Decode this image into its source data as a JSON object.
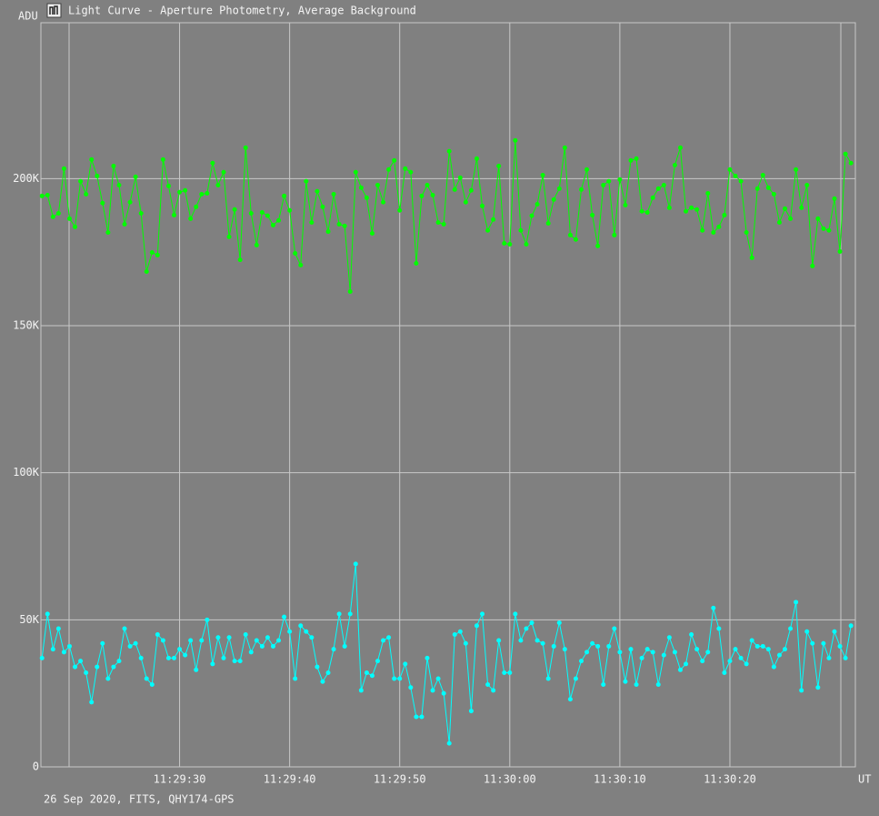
{
  "window_title": "Light Curve - Aperture Photometry, Average Background",
  "chart_data": {
    "type": "line",
    "ylabel": "ADU",
    "xlabel": "UT",
    "footer": "26 Sep 2020, FITS, QHY174-GPS",
    "x": [
      41357.5,
      41358,
      41358.5,
      41359,
      41359.5,
      41360,
      41360.5,
      41361,
      41361.5,
      41362,
      41362.5,
      41363,
      41363.5,
      41364,
      41364.5,
      41365,
      41365.5,
      41366,
      41366.5,
      41367,
      41367.5,
      41368,
      41368.5,
      41369,
      41369.5,
      41370,
      41370.5,
      41371,
      41371.5,
      41372,
      41372.5,
      41373,
      41373.5,
      41374,
      41374.5,
      41375,
      41375.5,
      41376,
      41376.5,
      41377,
      41377.5,
      41378,
      41378.5,
      41379,
      41379.5,
      41380,
      41380.5,
      41381,
      41381.5,
      41382,
      41382.5,
      41383,
      41383.5,
      41384,
      41384.5,
      41385,
      41385.5,
      41386,
      41386.5,
      41387,
      41387.5,
      41388,
      41388.5,
      41389,
      41389.5,
      41390,
      41390.5,
      41391,
      41391.5,
      41392,
      41392.5,
      41393,
      41393.5,
      41394,
      41394.5,
      41395,
      41395.5,
      41396,
      41396.5,
      41397,
      41397.5,
      41398,
      41398.5,
      41399,
      41399.5,
      41400,
      41400.5,
      41401,
      41401.5,
      41402,
      41402.5,
      41403,
      41403.5,
      41404,
      41404.5,
      41405,
      41405.5,
      41406,
      41406.5,
      41407,
      41407.5,
      41408,
      41408.5,
      41409,
      41409.5,
      41410,
      41410.5,
      41411,
      41411.5,
      41412,
      41412.5,
      41413,
      41413.5,
      41414,
      41414.5,
      41415,
      41415.5,
      41416,
      41416.5,
      41417,
      41417.5,
      41418,
      41418.5,
      41419,
      41419.5,
      41420,
      41420.5,
      41421,
      41421.5,
      41422,
      41422.5,
      41423,
      41423.5,
      41424,
      41424.5,
      41425,
      41425.5,
      41426,
      41426.5,
      41427,
      41427.5,
      41428,
      41428.5,
      41429,
      41429.5,
      41430,
      41430.5,
      41431
    ],
    "series": [
      {
        "color": "#00ff00",
        "values": [
          194100,
          194400,
          187000,
          188200,
          203400,
          186400,
          183600,
          199100,
          194700,
          206500,
          200900,
          191700,
          181700,
          204300,
          197800,
          184500,
          192000,
          200600,
          188200,
          168400,
          174900,
          174000,
          206500,
          197500,
          187600,
          195400,
          196000,
          186400,
          190400,
          194700,
          195000,
          205300,
          197800,
          202200,
          180200,
          189500,
          172400,
          210500,
          188200,
          177400,
          188500,
          187400,
          184200,
          185800,
          194100,
          189200,
          174600,
          170600,
          199100,
          185100,
          195700,
          190400,
          182000,
          194700,
          184500,
          183900,
          161600,
          202200,
          196900,
          193500,
          181400,
          197800,
          192000,
          203100,
          206200,
          189200,
          203400,
          202200,
          171200,
          194100,
          197800,
          194400,
          185100,
          184500,
          209300,
          196300,
          200300,
          192000,
          196000,
          206800,
          190700,
          182400,
          186100,
          204300,
          178000,
          177700,
          213000,
          182400,
          177700,
          187400,
          191300,
          201200,
          184800,
          192900,
          196600,
          210500,
          180800,
          179300,
          196300,
          203100,
          187600,
          177100,
          197800,
          199100,
          180800,
          199700,
          191000,
          206200,
          206800,
          188900,
          188500,
          193500,
          196600,
          197800,
          190100,
          204600,
          210500,
          188900,
          190100,
          189500,
          182400,
          195000,
          181700,
          183600,
          187600,
          203100,
          200900,
          199100,
          181700,
          173100,
          196600,
          201200,
          196900,
          194700,
          185100,
          189800,
          186400,
          203100,
          190100,
          197800,
          170300,
          186400,
          183000,
          182400,
          193200,
          175200,
          208400,
          205300
        ]
      },
      {
        "color": "#00ffff",
        "values": [
          37000,
          52000,
          40000,
          47000,
          39000,
          41000,
          34000,
          36000,
          32000,
          22000,
          34000,
          42000,
          30000,
          34000,
          36000,
          47000,
          41000,
          42000,
          37000,
          30000,
          28000,
          45000,
          43000,
          37000,
          37000,
          40000,
          38000,
          43000,
          33000,
          43000,
          50000,
          35000,
          44000,
          37000,
          44000,
          36000,
          36000,
          45000,
          39000,
          43000,
          41000,
          44000,
          41000,
          43000,
          51000,
          46000,
          30000,
          48000,
          46000,
          44000,
          34000,
          29000,
          32000,
          40000,
          52000,
          41000,
          52000,
          69000,
          26000,
          32000,
          31000,
          36000,
          43000,
          44000,
          30000,
          30000,
          35000,
          27000,
          17000,
          17000,
          37000,
          26000,
          30000,
          25000,
          8000,
          45000,
          46000,
          42000,
          19000,
          48000,
          52000,
          28000,
          26000,
          43000,
          32000,
          32000,
          52000,
          43000,
          47000,
          49000,
          43000,
          42000,
          30000,
          41000,
          49000,
          40000,
          23000,
          30000,
          36000,
          39000,
          42000,
          41000,
          28000,
          41000,
          47000,
          39000,
          29000,
          40000,
          28000,
          37000,
          40000,
          39000,
          28000,
          38000,
          44000,
          39000,
          33000,
          35000,
          45000,
          40000,
          36000,
          39000,
          54000,
          47000,
          32000,
          36000,
          40000,
          37000,
          35000,
          43000,
          41000,
          41000,
          40000,
          34000,
          38000,
          40000,
          47000,
          56000,
          26000,
          46000,
          42000,
          27000,
          42000,
          37000,
          46000,
          41000,
          37000,
          48000
        ]
      }
    ],
    "xlim": [
      41357.4,
      41431.4
    ],
    "xticks": [
      {
        "value": 41370,
        "label": "11:29:30"
      },
      {
        "value": 41380,
        "label": "11:29:40"
      },
      {
        "value": 41390,
        "label": "11:29:50"
      },
      {
        "value": 41400,
        "label": "11:30:00"
      },
      {
        "value": 41410,
        "label": "11:30:10"
      },
      {
        "value": 41420,
        "label": "11:30:20"
      }
    ],
    "ylim": [
      0,
      253000
    ],
    "yticks": [
      0,
      {
        "value": 50000,
        "label": "50K"
      },
      {
        "value": 100000,
        "label": "100K"
      },
      {
        "value": 150000,
        "label": "150K"
      },
      {
        "value": 200000,
        "label": "200K"
      }
    ],
    "grid": true
  }
}
